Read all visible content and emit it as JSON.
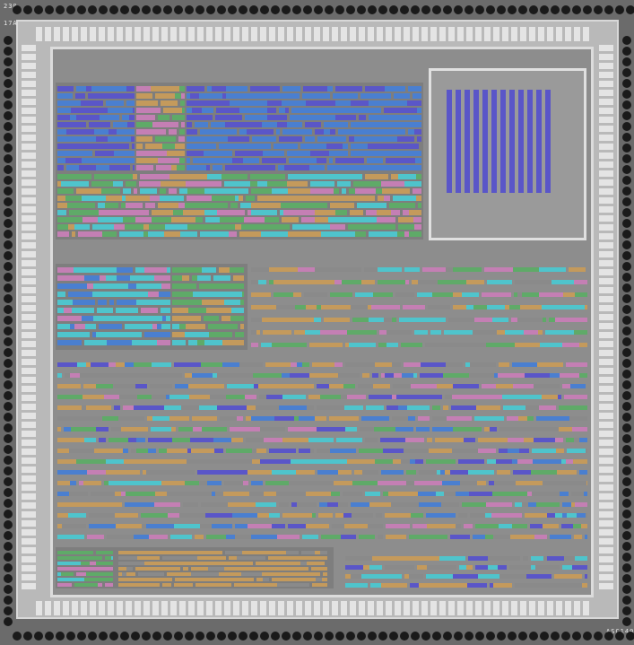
{
  "markings": {
    "top_1": "230",
    "top_2": "17A",
    "bottom_right": "ASC140"
  },
  "colors": {
    "substrate": "#6b6b6b",
    "pad": "#1a1a1a",
    "metal": "#dcdcdc",
    "core": "#8d8d8d",
    "cells": [
      "#4a7fd0",
      "#5a56c8",
      "#c49a5c",
      "#5faa68",
      "#c47fb4",
      "#4fc4cc",
      "#8a8a8a"
    ]
  }
}
